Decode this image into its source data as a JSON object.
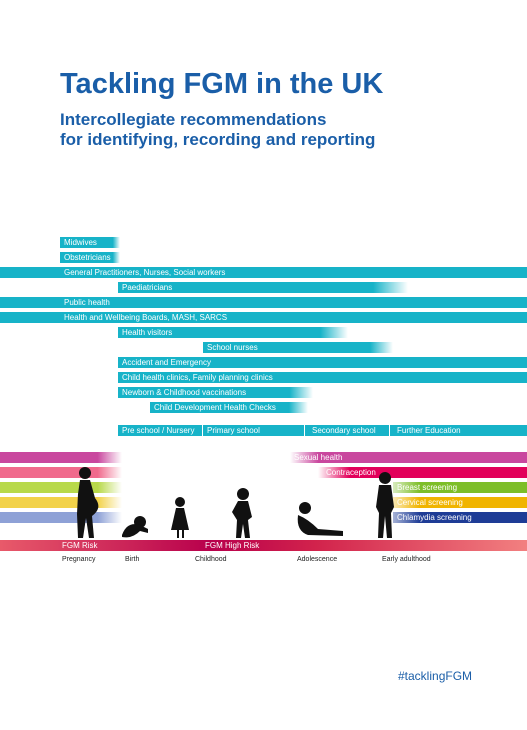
{
  "header": {
    "title": "Tackling FGM in the UK",
    "subtitle": [
      "Intercollegiate recommendations",
      "for identifying, recording and reporting"
    ]
  },
  "services": [
    "Midwives",
    "Obstetricians",
    "General Practitioners, Nurses, Social workers",
    "Paediatricians",
    "Public health",
    "Health and Wellbeing Boards, MASH, SARCS",
    "Health visitors",
    "School nurses",
    "Accident and Emergency",
    "Child health clinics, Family planning clinics",
    "Newborn & Childhood vaccinations",
    "Child Development Health Checks"
  ],
  "education": [
    "Pre school / Nursery",
    "Primary school",
    "Secondary school",
    "Further Education"
  ],
  "screening": [
    "Sexual health",
    "Contraception",
    "Breast screening",
    "Cervical screening",
    "Chlamydia screening"
  ],
  "risk": [
    "FGM Risk",
    "FGM High Risk"
  ],
  "stages": [
    "Pregnancy",
    "Birth",
    "Childhood",
    "Adolescence",
    "Early adulthood"
  ],
  "hashtag": "#tacklingFGM"
}
